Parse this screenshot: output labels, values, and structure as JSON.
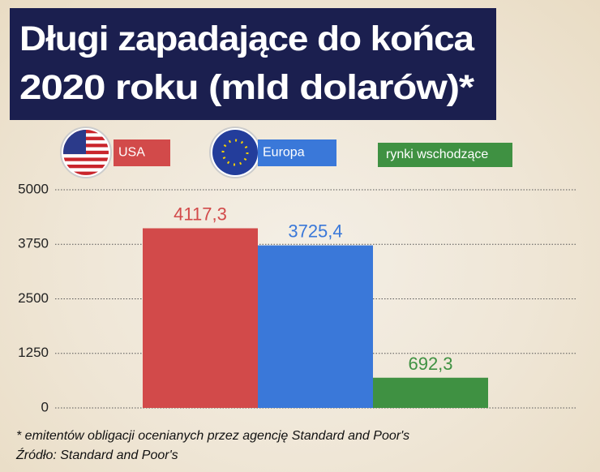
{
  "chart_data": {
    "type": "bar",
    "title": "Długi zapadające do końca 2020 roku (mld dolarów)*",
    "series": [
      {
        "name": "USA",
        "color": "#d24a4a",
        "values": [
          4117.3
        ],
        "value_labels": [
          "4117,3"
        ]
      },
      {
        "name": "Europa",
        "color": "#3a78d9",
        "values": [
          3725.4
        ],
        "value_labels": [
          "3725,4"
        ]
      },
      {
        "name": "rynki wschodzące",
        "color": "#3f9142",
        "values": [
          692.3
        ],
        "value_labels": [
          "692,3"
        ]
      }
    ],
    "ylim": [
      0,
      5000
    ],
    "yticks": [
      0,
      1250,
      2500,
      3750,
      5000
    ],
    "grid": true,
    "footnote": "* emitentów obligacji ocenianych przez agencję Standard and Poor's",
    "source": "Źródło: Standard and Poor's"
  }
}
